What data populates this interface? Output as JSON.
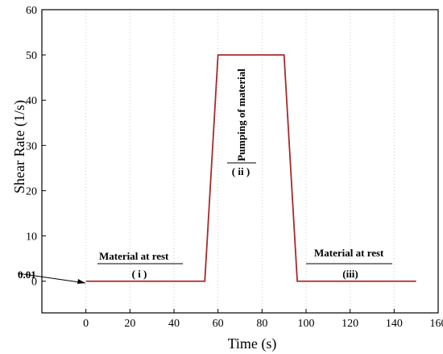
{
  "chart_data": {
    "type": "line",
    "xlabel": "Time (s)",
    "ylabel": "Shear Rate (1/s)",
    "xlim": [
      -20,
      160
    ],
    "ylim": [
      -7,
      60
    ],
    "xticks": [
      0,
      20,
      40,
      60,
      80,
      100,
      120,
      140,
      160
    ],
    "yticks": [
      0,
      10,
      20,
      30,
      40,
      50,
      60
    ],
    "grid": "vertical dotted",
    "series": [
      {
        "color": "#a52a2a",
        "x": [
          0,
          54,
          60,
          90,
          96,
          150
        ],
        "y": [
          0,
          0,
          50,
          50,
          0,
          0
        ]
      }
    ],
    "annotations": [
      {
        "text": "Material at rest",
        "phase": "( i )"
      },
      {
        "text": "Pumping of material",
        "phase": "( ii )"
      },
      {
        "text": "Material at rest",
        "phase": "(iii)"
      }
    ],
    "arrow_label": "0.01"
  }
}
